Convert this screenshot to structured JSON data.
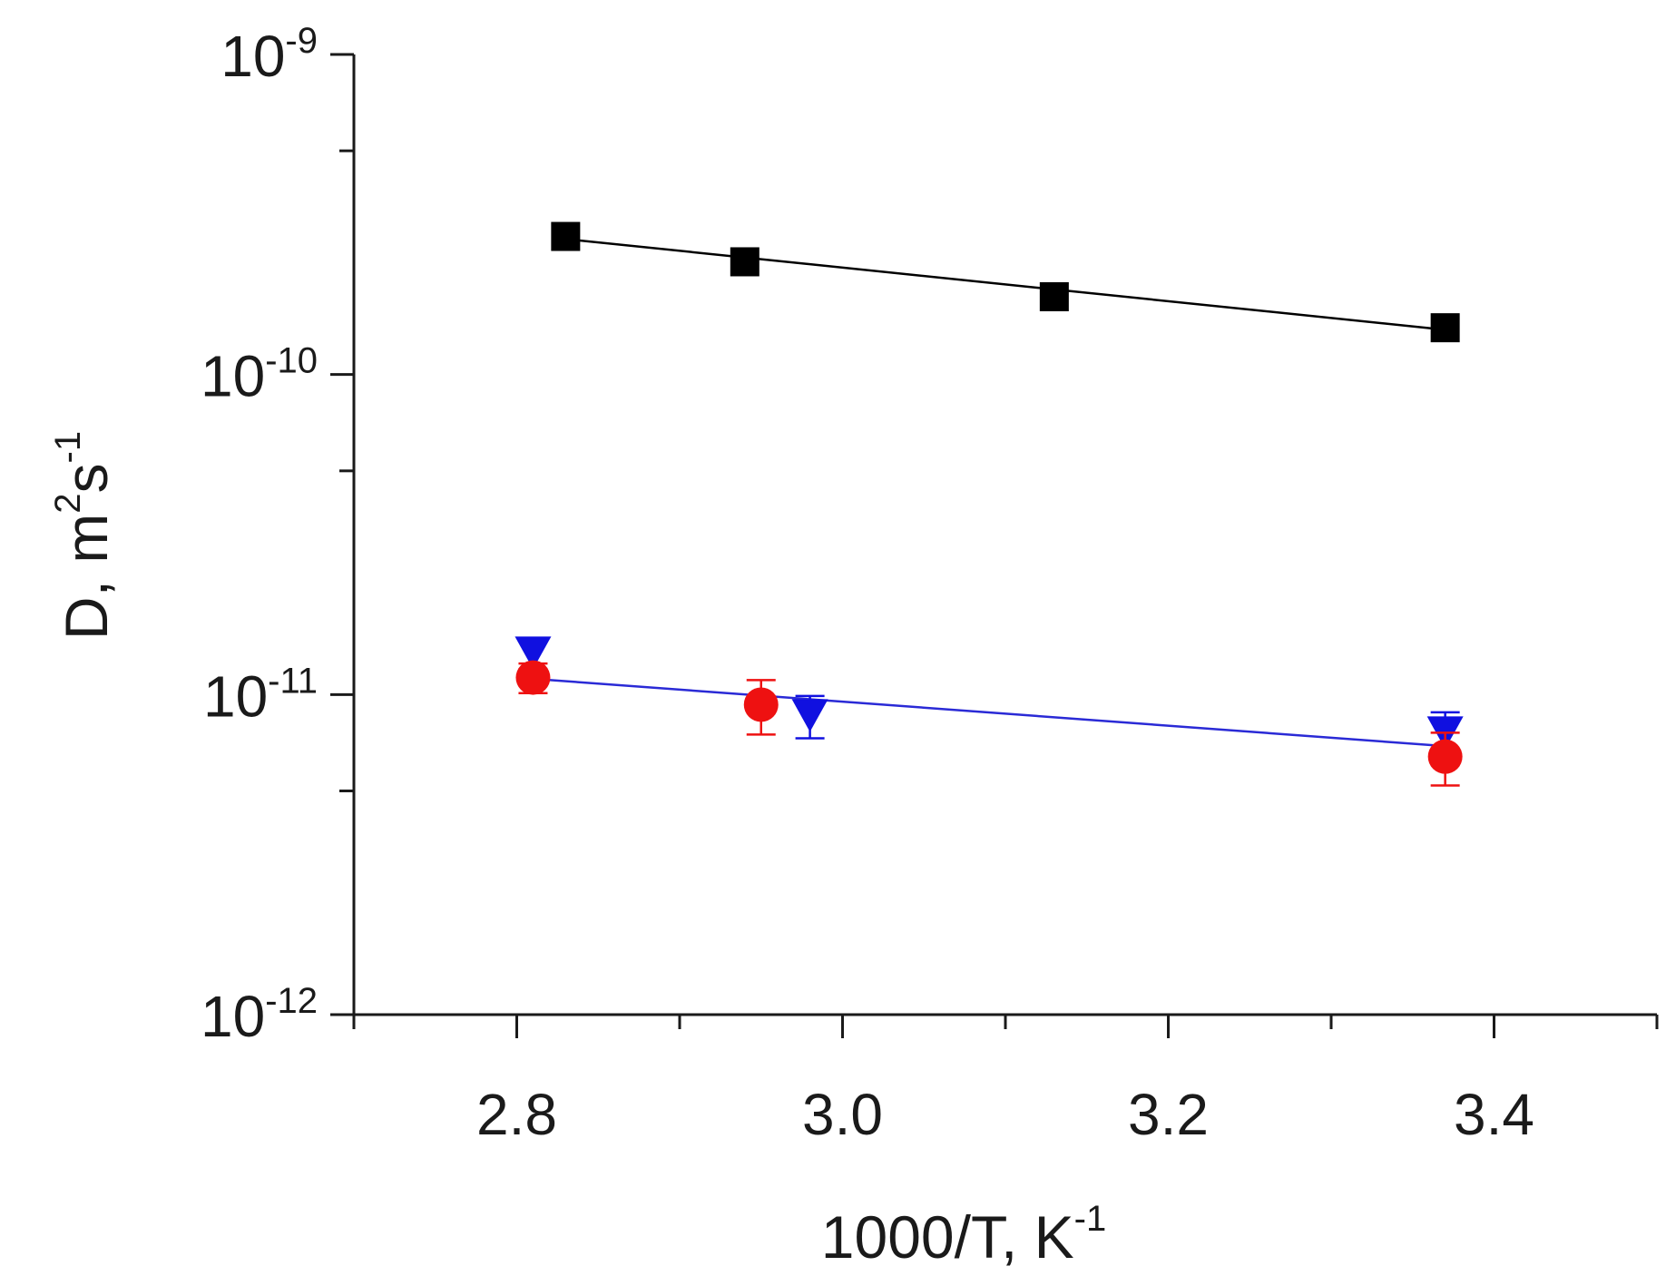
{
  "chart_data": {
    "type": "scatter",
    "title": "",
    "xlabel": {
      "base": "1000/T, K",
      "sup": "-1"
    },
    "ylabel": {
      "base": "D, m",
      "sup1": "2",
      "mid": "s",
      "sup2": "-1"
    },
    "xlim": [
      2.7,
      3.5
    ],
    "ylim": [
      1e-12,
      1e-09
    ],
    "yscale": "log",
    "grid": false,
    "xticks": [
      {
        "value": 2.8,
        "label": "2.8"
      },
      {
        "value": 3.0,
        "label": "3.0"
      },
      {
        "value": 3.2,
        "label": "3.2"
      },
      {
        "value": 3.4,
        "label": "3.4"
      }
    ],
    "xminor": [
      2.7,
      2.9,
      3.1,
      3.3,
      3.5
    ],
    "yticks": [
      {
        "value": 1e-09,
        "base": "10",
        "exp": "-9"
      },
      {
        "value": 1e-10,
        "base": "10",
        "exp": "-10"
      },
      {
        "value": 1e-11,
        "base": "10",
        "exp": "-11"
      },
      {
        "value": 1e-12,
        "base": "10",
        "exp": "-12"
      }
    ],
    "yminor": [
      5e-10,
      5e-11,
      5e-12
    ],
    "series": [
      {
        "name": "black squares",
        "marker": "square",
        "color": "#000000",
        "x": [
          2.83,
          2.94,
          3.13,
          3.37
        ],
        "y": [
          2.7e-10,
          2.25e-10,
          1.75e-10,
          1.4e-10
        ],
        "yerr": [
          0,
          0,
          0,
          0
        ]
      },
      {
        "name": "blue triangles",
        "marker": "triangle-down",
        "color": "#1010e0",
        "x": [
          2.81,
          2.98,
          3.37
        ],
        "y": [
          1.35e-11,
          8.6e-12,
          7.6e-12
        ],
        "yerr": [
          1.5e-12,
          1.3e-12,
          1.2e-12
        ]
      },
      {
        "name": "red circles",
        "marker": "circle",
        "color": "#ee1111",
        "x": [
          2.81,
          2.95,
          3.37
        ],
        "y": [
          1.13e-11,
          9.3e-12,
          6.4e-12
        ],
        "yerr": [
          1.2e-12,
          1.8e-12,
          1.2e-12
        ]
      }
    ],
    "fits": [
      {
        "name": "black fit",
        "color": "#000000",
        "x": [
          2.83,
          3.37
        ],
        "y": [
          2.65e-10,
          1.38e-10
        ]
      },
      {
        "name": "blue fit",
        "color": "#2a2ad6",
        "x": [
          2.81,
          3.37
        ],
        "y": [
          1.12e-11,
          6.9e-12
        ]
      }
    ]
  }
}
